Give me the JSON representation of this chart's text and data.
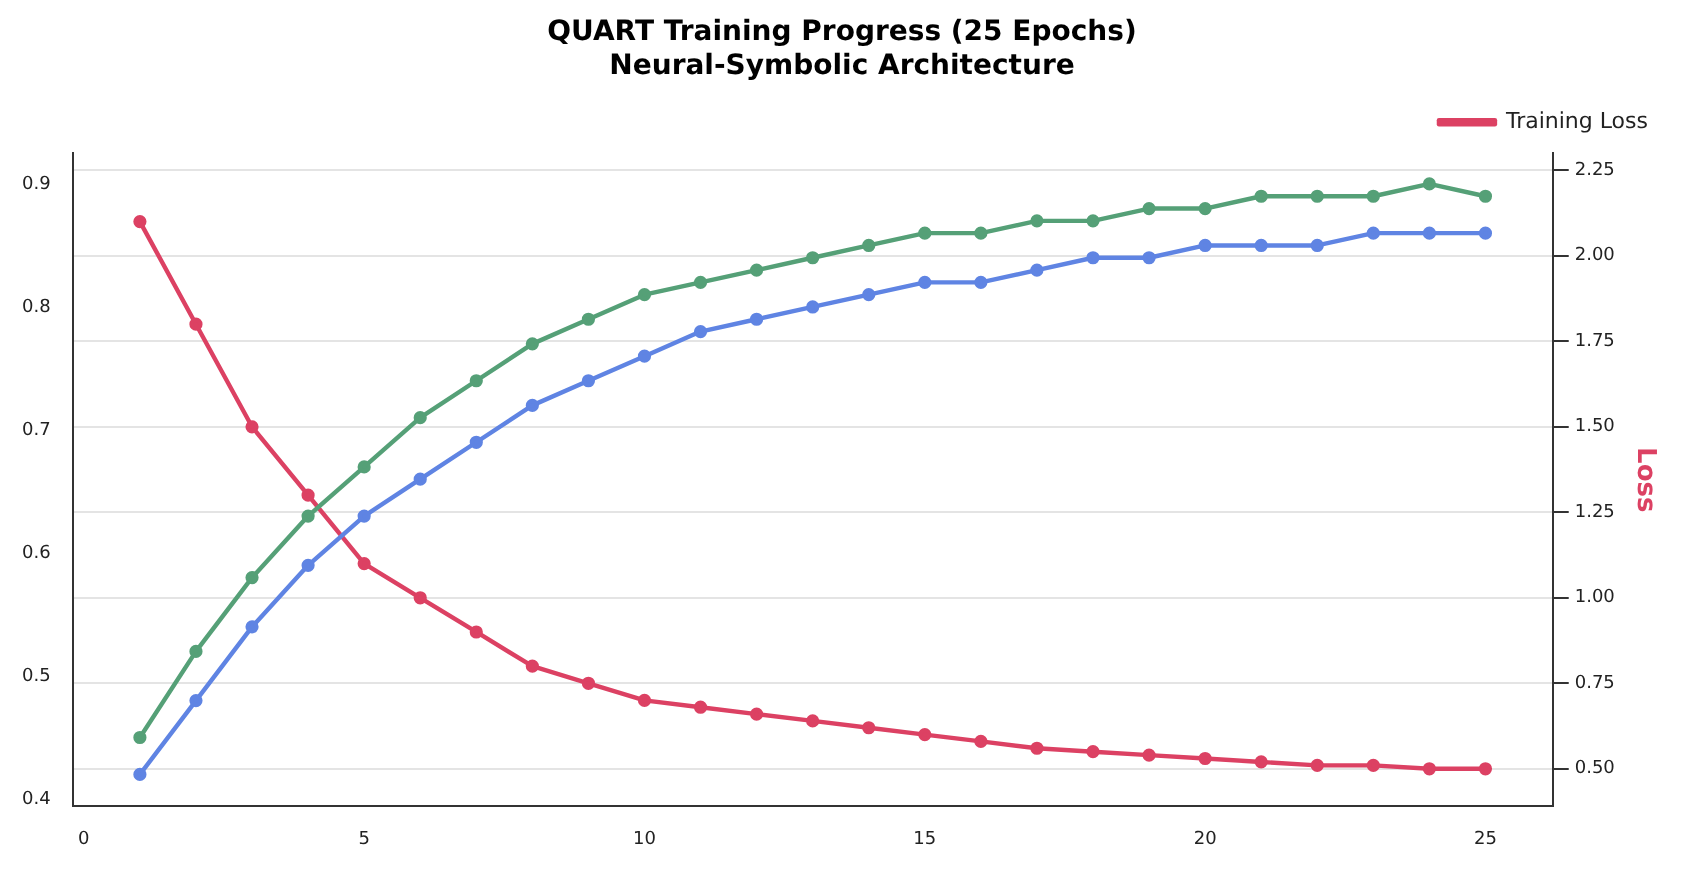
{
  "chart_data": {
    "type": "line",
    "title": "QUART Training Progress (25 Epochs)",
    "subtitle": "Neural-Symbolic Architecture",
    "y2label": "Loss",
    "x": [
      1,
      2,
      3,
      4,
      5,
      6,
      7,
      8,
      9,
      10,
      11,
      12,
      13,
      14,
      15,
      16,
      17,
      18,
      19,
      20,
      21,
      22,
      23,
      24,
      25
    ],
    "series": [
      {
        "color": "#55a077",
        "values": [
          0.45,
          0.52,
          0.58,
          0.63,
          0.67,
          0.71,
          0.74,
          0.77,
          0.79,
          0.81,
          0.82,
          0.83,
          0.84,
          0.85,
          0.86,
          0.86,
          0.87,
          0.87,
          0.88,
          0.88,
          0.89,
          0.89,
          0.89,
          0.9,
          0.89
        ]
      },
      {
        "color": "#5f84e3",
        "values": [
          0.42,
          0.48,
          0.54,
          0.59,
          0.63,
          0.66,
          0.69,
          0.72,
          0.74,
          0.76,
          0.78,
          0.79,
          0.8,
          0.81,
          0.82,
          0.82,
          0.83,
          0.84,
          0.84,
          0.85,
          0.85,
          0.85,
          0.86,
          0.86,
          0.86
        ]
      },
      {
        "name": "Training Loss",
        "color": "#dc4163",
        "axis": "y2",
        "values": [
          2.1,
          1.8,
          1.5,
          1.3,
          1.1,
          1.0,
          0.9,
          0.8,
          0.75,
          0.7,
          0.68,
          0.66,
          0.64,
          0.62,
          0.6,
          0.58,
          0.56,
          0.55,
          0.54,
          0.53,
          0.52,
          0.51,
          0.51,
          0.5,
          0.5
        ]
      }
    ],
    "xlim": [
      -0.2,
      26.2
    ],
    "xticks": [
      0,
      5,
      10,
      15,
      20,
      25
    ],
    "ylim": [
      0.394,
      0.925
    ],
    "yticks": [
      0.4,
      0.5,
      0.6,
      0.7,
      0.8,
      0.9
    ],
    "y2lim": [
      0.39,
      2.3
    ],
    "y2ticks": [
      {
        "value": 0.5,
        "label": "0.50"
      },
      0.75,
      {
        "value": 1,
        "label": "1.00"
      },
      1.25,
      {
        "value": 1.5,
        "label": "1.50"
      },
      1.75,
      {
        "value": 2,
        "label": "2.00"
      },
      2.25
    ],
    "grid": "y",
    "legend": "top right",
    "marker": "circle",
    "line_style": "solid"
  }
}
